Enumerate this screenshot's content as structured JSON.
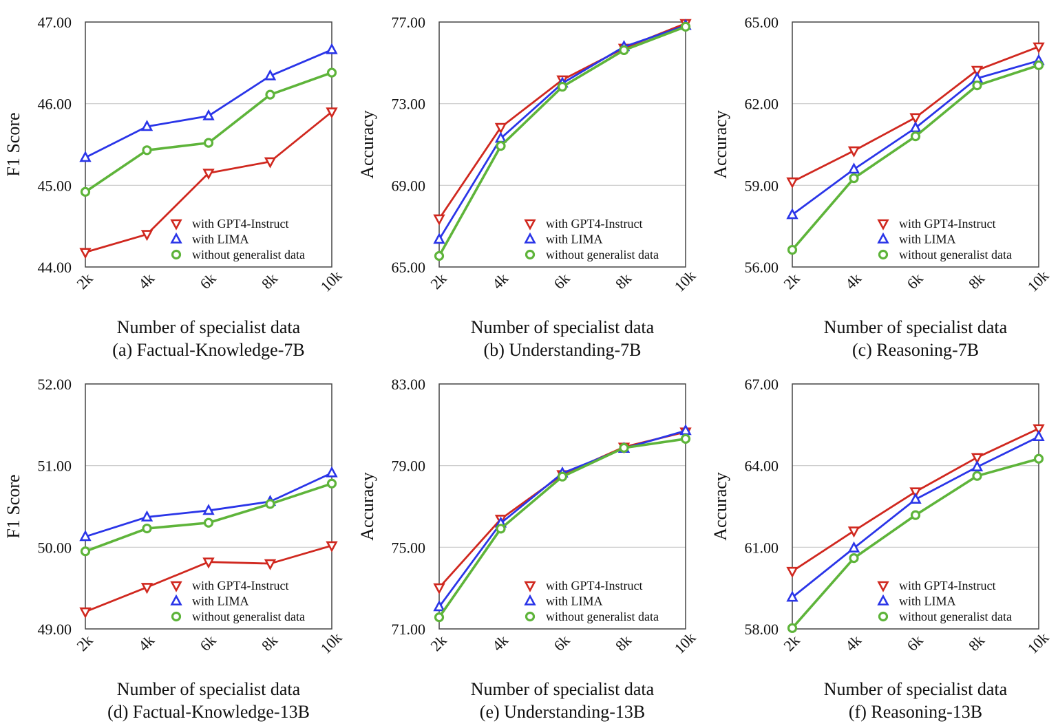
{
  "colors": {
    "gpt4": "#d0281f",
    "lima": "#2a35e8",
    "none": "#5eb43a",
    "grid": "#c8c8c8",
    "frame": "#444444"
  },
  "legend": {
    "placement": "bottom-right",
    "entries": [
      {
        "key": "gpt4",
        "label": "with GPT4-Instruct",
        "marker": "down-triangle"
      },
      {
        "key": "lima",
        "label": "with LIMA",
        "marker": "up-triangle"
      },
      {
        "key": "none",
        "label": "without generalist data",
        "marker": "circle"
      }
    ]
  },
  "chart_data": [
    {
      "type": "line",
      "caption": "(a) Factual-Knowledge-7B",
      "xlabel": "Number of specialist data",
      "ylabel": "F1 Score",
      "categories": [
        "2k",
        "4k",
        "6k",
        "8k",
        "10k"
      ],
      "ylim": [
        44,
        47
      ],
      "yticks": [
        "44.00",
        "45.00",
        "46.00",
        "47.00"
      ],
      "grid": true,
      "series": [
        {
          "name": "with GPT4-Instruct",
          "key": "gpt4",
          "values": [
            44.18,
            44.4,
            45.15,
            45.29,
            45.9
          ]
        },
        {
          "name": "with LIMA",
          "key": "lima",
          "values": [
            45.34,
            45.72,
            45.85,
            46.34,
            46.66
          ]
        },
        {
          "name": "without generalist data",
          "key": "none",
          "values": [
            44.92,
            45.43,
            45.52,
            46.11,
            46.38
          ]
        }
      ]
    },
    {
      "type": "line",
      "caption": "(b) Understanding-7B",
      "xlabel": "Number of specialist data",
      "ylabel": "Accuracy",
      "categories": [
        "2k",
        "4k",
        "6k",
        "8k",
        "10k"
      ],
      "ylim": [
        65,
        77
      ],
      "yticks": [
        "65.00",
        "69.00",
        "73.00",
        "77.00"
      ],
      "grid": true,
      "series": [
        {
          "name": "with GPT4-Instruct",
          "key": "gpt4",
          "values": [
            67.36,
            71.84,
            74.17,
            75.72,
            76.93
          ]
        },
        {
          "name": "with LIMA",
          "key": "lima",
          "values": [
            66.35,
            71.3,
            74.0,
            75.79,
            76.83
          ]
        },
        {
          "name": "without generalist data",
          "key": "none",
          "values": [
            65.54,
            70.93,
            73.83,
            75.62,
            76.77
          ]
        }
      ]
    },
    {
      "type": "line",
      "caption": "(c) Reasoning-7B",
      "xlabel": "Number of specialist data",
      "ylabel": "Accuracy",
      "categories": [
        "2k",
        "4k",
        "6k",
        "8k",
        "10k"
      ],
      "ylim": [
        56,
        65
      ],
      "yticks": [
        "56.00",
        "59.00",
        "62.00",
        "65.00"
      ],
      "grid": true,
      "series": [
        {
          "name": "with GPT4-Instruct",
          "key": "gpt4",
          "values": [
            59.13,
            60.27,
            61.49,
            63.23,
            64.09
          ]
        },
        {
          "name": "with LIMA",
          "key": "lima",
          "values": [
            57.92,
            59.59,
            61.11,
            62.93,
            63.58
          ]
        },
        {
          "name": "without generalist data",
          "key": "none",
          "values": [
            56.63,
            59.26,
            60.8,
            62.67,
            63.41
          ]
        }
      ]
    },
    {
      "type": "line",
      "caption": "(d) Factual-Knowledge-13B",
      "xlabel": "Number of specialist data",
      "ylabel": "F1 Score",
      "categories": [
        "2k",
        "4k",
        "6k",
        "8k",
        "10k"
      ],
      "ylim": [
        49,
        52
      ],
      "yticks": [
        "49.00",
        "50.00",
        "51.00",
        "52.00"
      ],
      "grid": true,
      "series": [
        {
          "name": "with GPT4-Instruct",
          "key": "gpt4",
          "values": [
            49.21,
            49.51,
            49.82,
            49.8,
            50.02
          ]
        },
        {
          "name": "with LIMA",
          "key": "lima",
          "values": [
            50.13,
            50.37,
            50.45,
            50.56,
            50.91
          ]
        },
        {
          "name": "without generalist data",
          "key": "none",
          "values": [
            49.95,
            50.23,
            50.3,
            50.53,
            50.78
          ]
        }
      ]
    },
    {
      "type": "line",
      "caption": "(e) Understanding-13B",
      "xlabel": "Number of specialist data",
      "ylabel": "Accuracy",
      "categories": [
        "2k",
        "4k",
        "6k",
        "8k",
        "10k"
      ],
      "ylim": [
        71,
        83
      ],
      "yticks": [
        "71.00",
        "75.00",
        "79.00",
        "83.00"
      ],
      "grid": true,
      "series": [
        {
          "name": "with GPT4-Instruct",
          "key": "gpt4",
          "values": [
            73.02,
            76.38,
            78.56,
            79.91,
            80.65
          ]
        },
        {
          "name": "with LIMA",
          "key": "lima",
          "values": [
            72.08,
            76.18,
            78.63,
            79.84,
            80.71
          ]
        },
        {
          "name": "without generalist data",
          "key": "none",
          "values": [
            71.57,
            75.91,
            78.46,
            79.87,
            80.31
          ]
        }
      ]
    },
    {
      "type": "line",
      "caption": "(f) Reasoning-13B",
      "xlabel": "Number of specialist data",
      "ylabel": "Accuracy",
      "categories": [
        "2k",
        "4k",
        "6k",
        "8k",
        "10k"
      ],
      "ylim": [
        58,
        67
      ],
      "yticks": [
        "58.00",
        "61.00",
        "64.00",
        "67.00"
      ],
      "grid": true,
      "series": [
        {
          "name": "with GPT4-Instruct",
          "key": "gpt4",
          "values": [
            60.12,
            61.6,
            63.04,
            64.3,
            65.36
          ]
        },
        {
          "name": "with LIMA",
          "key": "lima",
          "values": [
            59.16,
            60.97,
            62.76,
            63.95,
            65.06
          ]
        },
        {
          "name": "without generalist data",
          "key": "none",
          "values": [
            58.03,
            60.6,
            62.18,
            63.62,
            64.25
          ]
        }
      ]
    }
  ]
}
